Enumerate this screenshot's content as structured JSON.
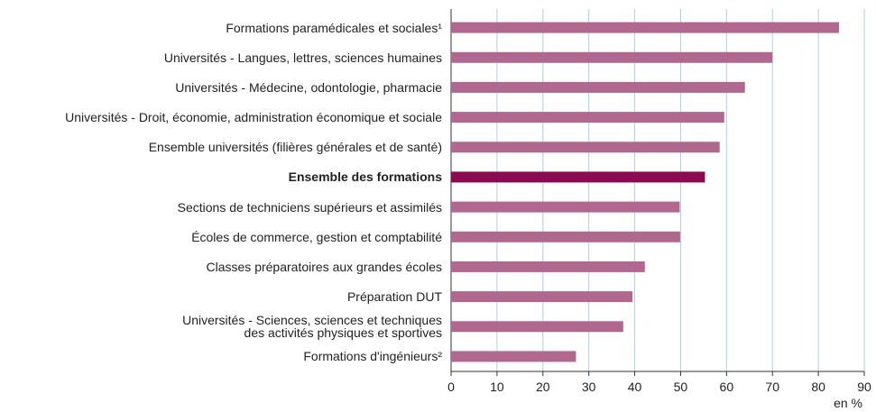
{
  "chart_data": {
    "type": "barh",
    "categories": [
      "Formations paramédicales et sociales¹",
      "Universités - Langues, lettres, sciences humaines",
      "Universités - Médecine, odontologie, pharmacie",
      "Universités - Droit, économie, administration économique et sociale",
      "Ensemble universités (filières générales et de santé)",
      "Ensemble des formations",
      "Sections de techniciens supérieurs et assimilés",
      "Écoles de commerce, gestion et comptabilité",
      "Classes préparatoires aux grandes écoles",
      "Préparation DUT",
      "Universités - Sciences, sciences et techniques\ndes activités physiques et sportives",
      "Formations d'ingénieurs²"
    ],
    "values": [
      84.5,
      70,
      64,
      59.5,
      58.5,
      55.3,
      49.8,
      49.9,
      42.2,
      39.5,
      37.5,
      27.2
    ],
    "colors": [
      "#b0688f",
      "#b0688f",
      "#b0688f",
      "#b0688f",
      "#b0688f",
      "#8c0a52",
      "#b0688f",
      "#b0688f",
      "#b0688f",
      "#b0688f",
      "#b0688f",
      "#b0688f"
    ],
    "xlabel": "en %",
    "xlim": [
      0,
      90
    ],
    "xticks": [
      0,
      10,
      20,
      30,
      40,
      50,
      60,
      70,
      80,
      90
    ],
    "grid": true
  }
}
